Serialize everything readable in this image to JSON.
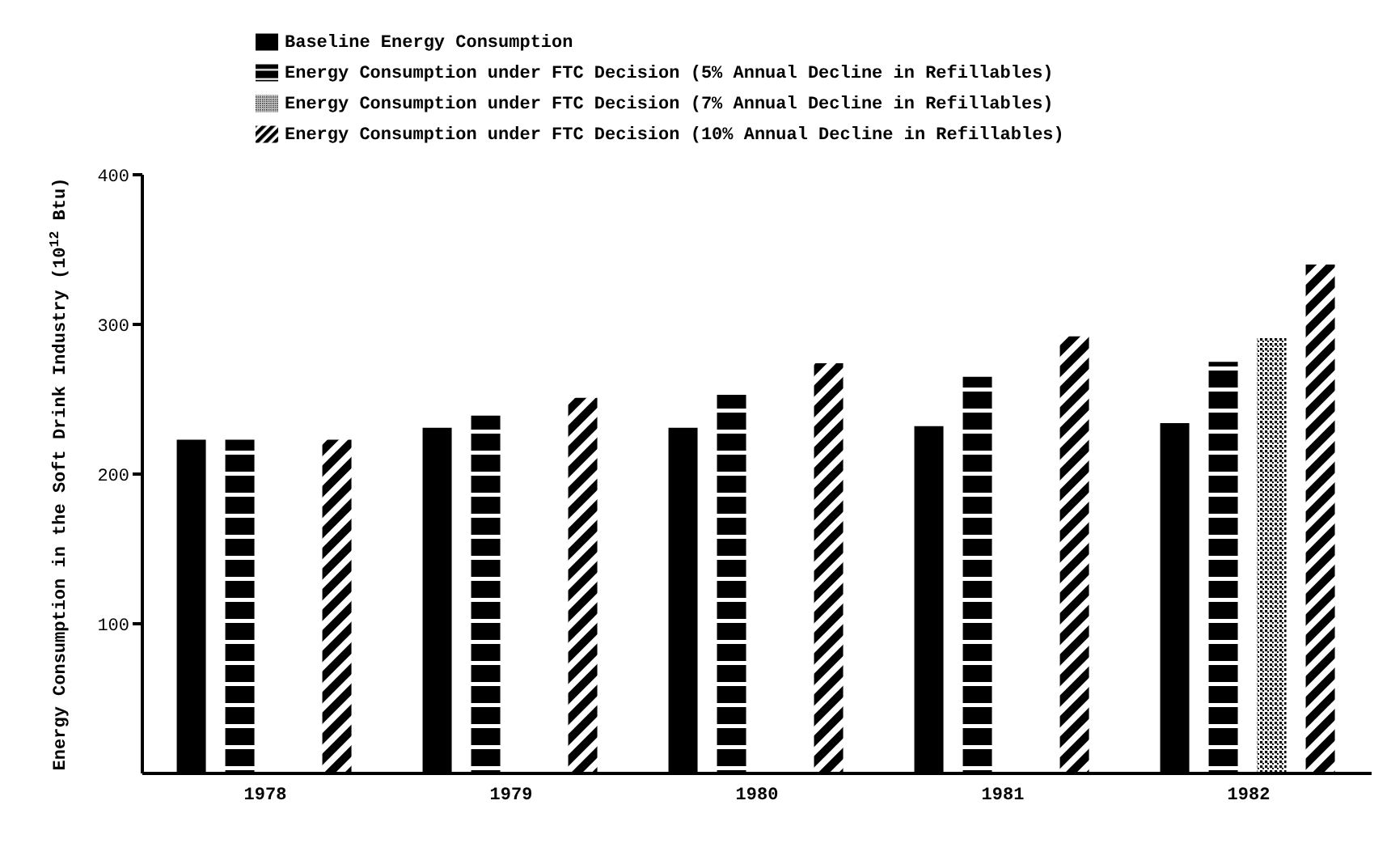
{
  "chart_data": {
    "type": "bar",
    "ylabel": "Energy Consumption in the Soft Drink Industry (10$^{12}$ Btu)",
    "categories": [
      "1978",
      "1979",
      "1980",
      "1981",
      "1982"
    ],
    "ylim": [
      0,
      400
    ],
    "yticks": [
      100,
      200,
      300,
      400
    ],
    "legend": "top",
    "series": [
      {
        "name": "Baseline Energy Consumption",
        "color": "#000000",
        "values": [
          223,
          231,
          231,
          232,
          234
        ]
      },
      {
        "name": "Energy Consumption under FTC Decision (5% Annual Decline in Refillables)",
        "color": "#000000",
        "values": [
          223,
          239,
          253,
          265,
          275
        ]
      },
      {
        "name": "Energy Consumption under FTC Decision (7% Annual Decline in Refillables)",
        "color": "#000000",
        "values": [
          null,
          null,
          null,
          null,
          291
        ]
      },
      {
        "name": "Energy Consumption under FTC Decision (10% Annual Decline in Refillables)",
        "color": "#000000",
        "values": [
          223,
          251,
          274,
          292,
          340
        ]
      }
    ]
  }
}
